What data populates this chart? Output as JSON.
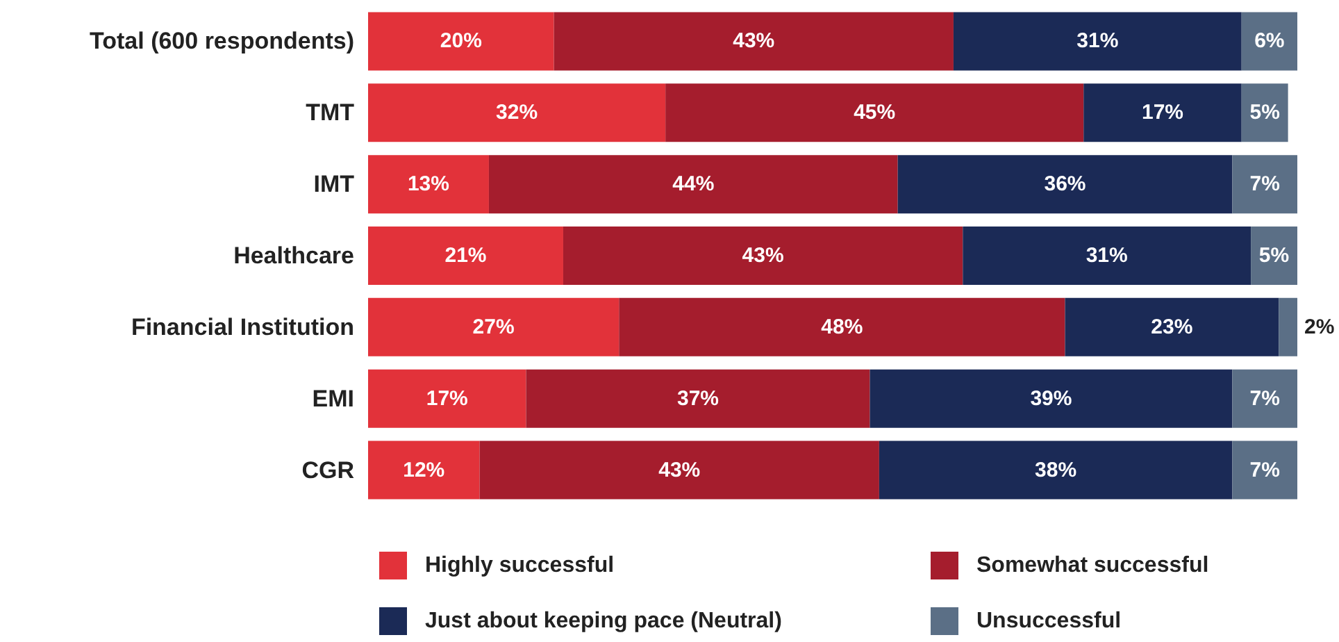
{
  "chart_data": {
    "type": "bar",
    "orientation": "horizontal",
    "stacked": true,
    "legend": "bottom",
    "grid": false,
    "tick_labels": "y",
    "xlim": [
      0,
      100
    ],
    "categories": [
      "Total (600 respondents)",
      "TMT",
      "IMT",
      "Healthcare",
      "Financial Institution",
      "EMI",
      "CGR"
    ],
    "series": [
      {
        "name": "Highly successful",
        "color": "#e2323a",
        "values": [
          20,
          32,
          13,
          21,
          27,
          17,
          12
        ],
        "value_labels": [
          "20%",
          "32%",
          "13%",
          "21%",
          "27%",
          "17%",
          "12%"
        ]
      },
      {
        "name": "Somewhat successful",
        "color": "#a51d2d",
        "values": [
          43,
          45,
          44,
          43,
          48,
          37,
          43
        ],
        "value_labels": [
          "43%",
          "45%",
          "44%",
          "43%",
          "48%",
          "37%",
          "43%"
        ]
      },
      {
        "name": "Just about keeping pace (Neutral)",
        "color": "#1b2a56",
        "values": [
          31,
          17,
          36,
          31,
          23,
          39,
          38
        ],
        "value_labels": [
          "31%",
          "17%",
          "36%",
          "31%",
          "23%",
          "39%",
          "38%"
        ]
      },
      {
        "name": "Unsuccessful",
        "color": "#5b6f86",
        "values": [
          6,
          5,
          7,
          5,
          2,
          7,
          7
        ],
        "value_labels": [
          "6%",
          "5%",
          "7%",
          "5%",
          "2%",
          "7%",
          "7%"
        ]
      }
    ]
  }
}
